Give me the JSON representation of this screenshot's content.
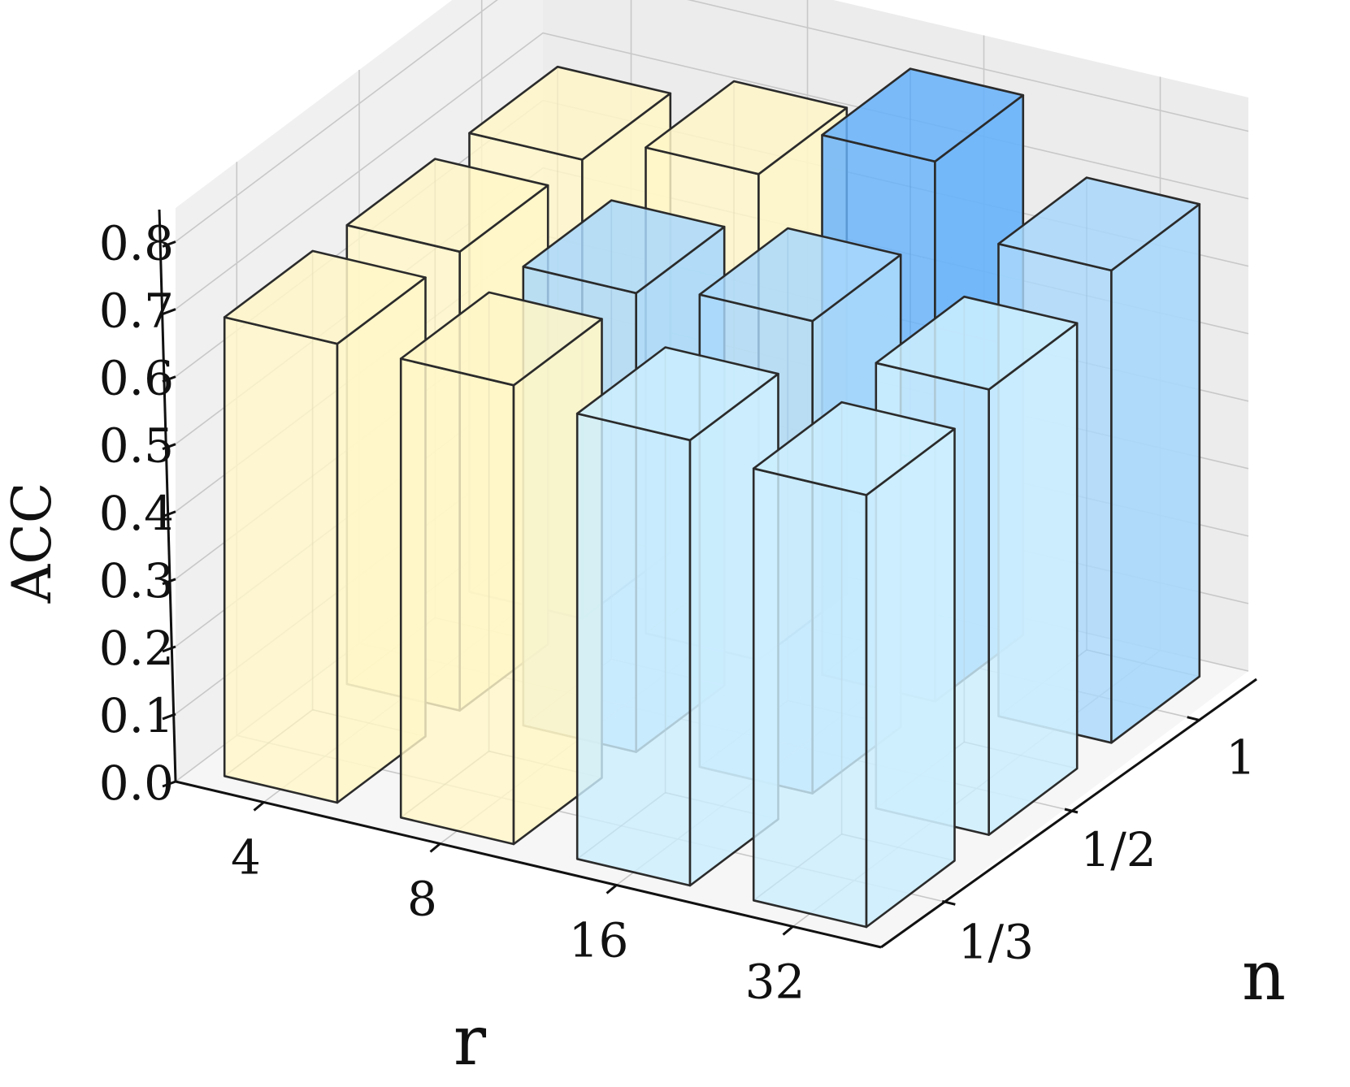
{
  "chart_data": {
    "type": "bar3d",
    "title": "",
    "xlabel": "r",
    "ylabel": "n",
    "zlabel": "ACC",
    "x_categories": [
      "4",
      "8",
      "16",
      "32"
    ],
    "y_categories": [
      "1/3",
      "1/2",
      "1"
    ],
    "zlim": [
      0,
      0.85
    ],
    "z_ticks": [
      "0.0",
      "0.1",
      "0.2",
      "0.3",
      "0.4",
      "0.5",
      "0.6",
      "0.7",
      "0.8"
    ],
    "grid": true,
    "values": [
      [
        0.68,
        0.68,
        0.66,
        0.64
      ],
      [
        0.68,
        0.68,
        0.7,
        0.66
      ],
      [
        0.68,
        0.72,
        0.8,
        0.7
      ]
    ],
    "colors": {
      "low": "#fff6c8",
      "mid_light": "#cdeefe",
      "mid": "#a9d8fb",
      "high": "#66b2fb"
    },
    "bar_colors": [
      [
        "#fff6c8",
        "#fff6c8",
        "#cdeefe",
        "#cdeefe"
      ],
      [
        "#fff6c8",
        "#a9d8fb",
        "#a9d8fb",
        "#cdeefe"
      ],
      [
        "#fff6c8",
        "#fff6c8",
        "#66b2fb",
        "#a9d8fb"
      ]
    ]
  }
}
